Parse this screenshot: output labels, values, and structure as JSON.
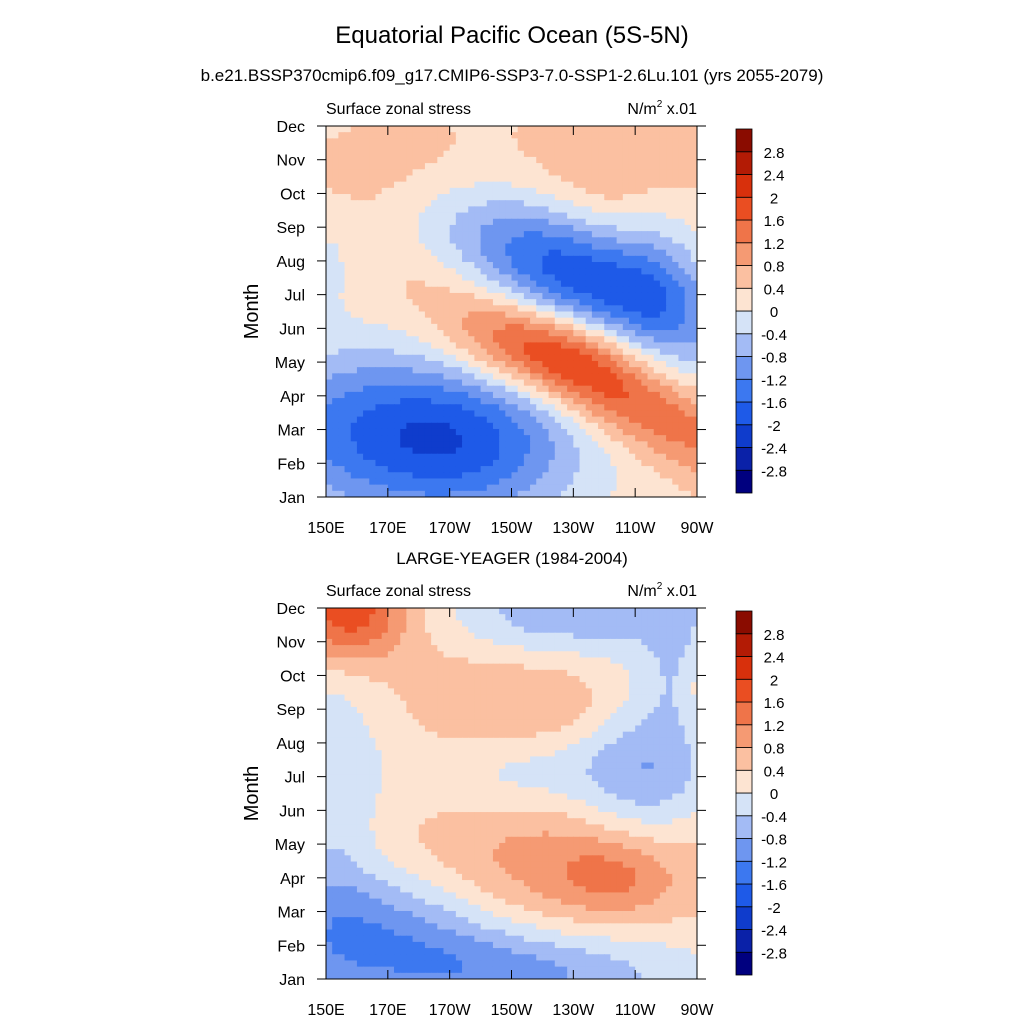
{
  "figure": {
    "title": "Equatorial Pacific Ocean (5S-5N)"
  },
  "colorbar_levels": [
    "-2.8",
    "-2.4",
    "-2",
    "-1.6",
    "-1.2",
    "-0.8",
    "-0.4",
    "0",
    "0.4",
    "0.8",
    "1.2",
    "1.6",
    "2",
    "2.4",
    "2.8"
  ],
  "colorbar_colors": [
    "#00007f",
    "#0a21a8",
    "#0f3ccc",
    "#1e5ae8",
    "#3c78f0",
    "#6e96f0",
    "#a3bbf5",
    "#d5e3f7",
    "#fde4d2",
    "#fbc0a1",
    "#f59a73",
    "#ef7449",
    "#ea4e22",
    "#d8300c",
    "#b31b05",
    "#8a0c00"
  ],
  "chart_data": [
    {
      "type": "heatmap",
      "title": "b.e21.BSSP370cmip6.f09_g17.CMIP6-SSP3-7.0-SSP1-2.6Lu.101 (yrs 2055-2079)",
      "left_label": "Surface zonal stress",
      "units_label": "N/m",
      "units_sup": "2",
      "units_suffix": " x.01",
      "ylabel": "Month",
      "x_ticks": [
        "150E",
        "170E",
        "170W",
        "150W",
        "130W",
        "110W",
        "90W"
      ],
      "y_ticks": [
        "Jan",
        "Feb",
        "Mar",
        "Apr",
        "May",
        "Jun",
        "Jul",
        "Aug",
        "Sep",
        "Oct",
        "Nov",
        "Dec"
      ],
      "xlim": [
        150,
        270
      ],
      "ylim": [
        1,
        12
      ],
      "background_value": 0.3,
      "features": [
        {
          "lon": 175,
          "month": 3.0,
          "sx": 38,
          "sy": 1.8,
          "amp": -1.9
        },
        {
          "lon": 196,
          "month": 2.2,
          "sx": 24,
          "sy": 1.4,
          "amp": -0.7
        },
        {
          "lon": 240,
          "month": 4.3,
          "sx": 34,
          "sy": 1.0,
          "amp": 1.7,
          "tilt": -0.045
        },
        {
          "lon": 225,
          "month": 5.4,
          "sx": 28,
          "sy": 0.9,
          "amp": 0.8
        },
        {
          "lon": 235,
          "month": 7.4,
          "sx": 32,
          "sy": 1.3,
          "amp": -2.2,
          "tilt": -0.035
        },
        {
          "lon": 258,
          "month": 8.0,
          "sx": 10,
          "sy": 2.5,
          "amp": -0.5
        },
        {
          "lon": 175,
          "month": 10.6,
          "sx": 22,
          "sy": 1.1,
          "amp": 0.4
        },
        {
          "lon": 248,
          "month": 10.8,
          "sx": 20,
          "sy": 1.3,
          "amp": 0.6
        },
        {
          "lon": 152,
          "month": 8.0,
          "sx": 5,
          "sy": 1.0,
          "amp": -0.4
        }
      ]
    },
    {
      "type": "heatmap",
      "title": "LARGE-YEAGER (1984-2004)",
      "left_label": "Surface zonal stress",
      "units_label": "N/m",
      "units_sup": "2",
      "units_suffix": " x.01",
      "ylabel": "Month",
      "x_ticks": [
        "150E",
        "170E",
        "170W",
        "150W",
        "130W",
        "110W",
        "90W"
      ],
      "y_ticks": [
        "Jan",
        "Feb",
        "Mar",
        "Apr",
        "May",
        "Jun",
        "Jul",
        "Aug",
        "Sep",
        "Oct",
        "Nov",
        "Dec"
      ],
      "xlim": [
        150,
        270
      ],
      "ylim": [
        1,
        12
      ],
      "background_value": 0.2,
      "features": [
        {
          "lon": 157,
          "month": 11.9,
          "sx": 14,
          "sy": 1.1,
          "amp": 1.8
        },
        {
          "lon": 232,
          "month": 4.4,
          "sx": 36,
          "sy": 1.4,
          "amp": 0.95
        },
        {
          "lon": 244,
          "month": 4.0,
          "sx": 12,
          "sy": 0.8,
          "amp": 0.55
        },
        {
          "lon": 222,
          "month": 9.1,
          "sx": 24,
          "sy": 1.0,
          "amp": 0.65
        },
        {
          "lon": 165,
          "month": 2.5,
          "sx": 28,
          "sy": 1.3,
          "amp": -1.25
        },
        {
          "lon": 212,
          "month": 1.2,
          "sx": 38,
          "sy": 0.9,
          "amp": -1.1
        },
        {
          "lon": 253,
          "month": 7.2,
          "sx": 16,
          "sy": 2.0,
          "amp": -1.0
        },
        {
          "lon": 228,
          "month": 11.8,
          "sx": 30,
          "sy": 0.8,
          "amp": -0.85
        },
        {
          "lon": 265,
          "month": 10.8,
          "sx": 7,
          "sy": 1.8,
          "amp": -0.6
        },
        {
          "lon": 153,
          "month": 6.5,
          "sx": 9,
          "sy": 3.0,
          "amp": -0.55
        },
        {
          "lon": 210,
          "month": 7.1,
          "sx": 28,
          "sy": 0.9,
          "amp": -0.45
        },
        {
          "lon": 270,
          "month": 9.8,
          "sx": 5,
          "sy": 1.4,
          "amp": 0.45
        },
        {
          "lon": 190,
          "month": 9.0,
          "sx": 12,
          "sy": 3.0,
          "amp": 0.2
        }
      ]
    }
  ]
}
